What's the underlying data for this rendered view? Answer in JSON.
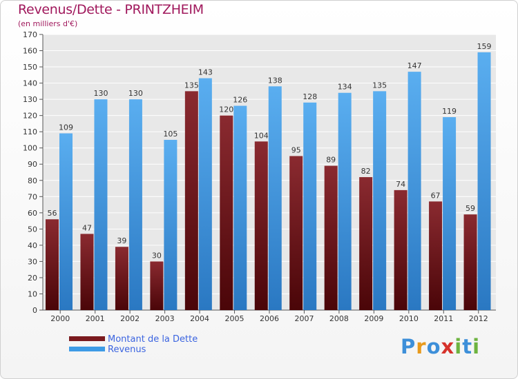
{
  "chart_data": {
    "type": "bar",
    "title": "Revenus/Dette - PRINTZHEIM",
    "subtitle": "(en milliers d'€)",
    "xlabel": "",
    "ylabel": "",
    "ylim": [
      0,
      170
    ],
    "yticks": [
      0,
      10,
      20,
      30,
      40,
      50,
      60,
      70,
      80,
      90,
      100,
      110,
      120,
      130,
      140,
      150,
      160,
      170
    ],
    "grid": true,
    "legend_position": "bottom-left",
    "categories": [
      "2000",
      "2001",
      "2002",
      "2003",
      "2004",
      "2005",
      "2006",
      "2007",
      "2008",
      "2009",
      "2010",
      "2011",
      "2012"
    ],
    "series": [
      {
        "name": "Montant de la Dette",
        "color": "#7a1a1e",
        "values": [
          56,
          47,
          39,
          30,
          135,
          120,
          104,
          95,
          89,
          82,
          74,
          67,
          59
        ]
      },
      {
        "name": "Revenus",
        "color": "#3d9be6",
        "values": [
          109,
          130,
          130,
          105,
          143,
          126,
          138,
          128,
          134,
          135,
          147,
          119,
          159
        ]
      }
    ]
  },
  "brand": {
    "text": "Proxiti",
    "letters": [
      "P",
      "r",
      "o",
      "x",
      "i",
      "t",
      "i"
    ],
    "colors": [
      "#3d8fd9",
      "#e89a1c",
      "#3d8fd9",
      "#d6322b",
      "#6db33f",
      "#3d8fd9",
      "#6db33f"
    ]
  }
}
